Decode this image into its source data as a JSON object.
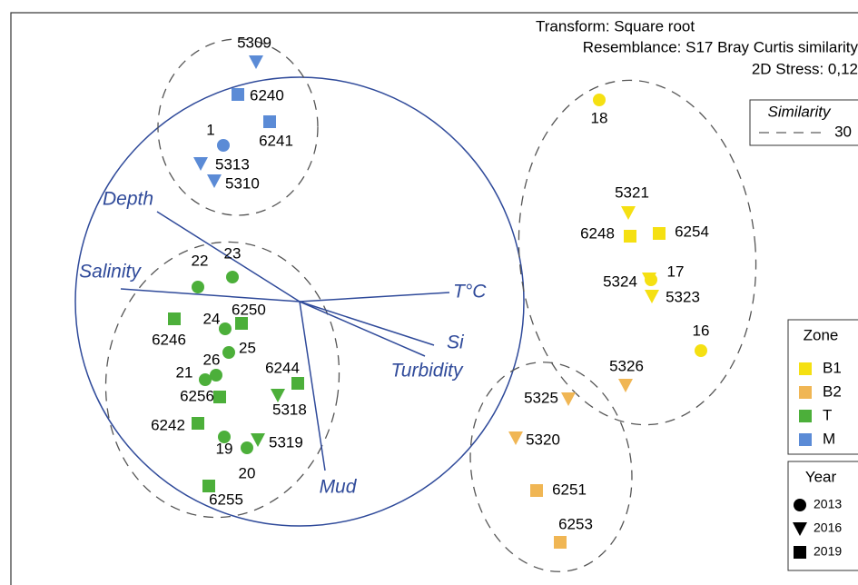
{
  "chart_data": {
    "type": "scatter",
    "title_lines": [
      "Transform: Square root",
      "Resemblance: S17 Bray Curtis similarity",
      "2D Stress: 0,12"
    ],
    "xlim": [
      0,
      945
    ],
    "ylim": [
      644,
      0
    ],
    "similarity_legend": {
      "title": "Similarity",
      "entries": [
        30
      ]
    },
    "zone_legend_title": "Zone",
    "year_legend": {
      "title": "Year",
      "entries": [
        2013,
        2016,
        2019
      ]
    },
    "series": [
      {
        "name": "B1",
        "color": "#f5e012",
        "labels": [
          "18",
          "5321",
          "6248",
          "6254",
          "5324",
          "17",
          "5323",
          "16"
        ],
        "x": [
          660,
          692,
          694,
          726,
          715,
          717,
          718,
          772
        ],
        "values": [
          110,
          234,
          260,
          257,
          307,
          308,
          326,
          386
        ],
        "years": [
          2013,
          2016,
          2019,
          2019,
          2016,
          2013,
          2016,
          2013
        ]
      },
      {
        "name": "B2",
        "color": "#f0b654",
        "labels": [
          "5326",
          "5325",
          "5320",
          "6251",
          "6253"
        ],
        "x": [
          689,
          626,
          568,
          591,
          617
        ],
        "values": [
          424,
          439,
          482,
          540,
          597
        ],
        "years": [
          2016,
          2016,
          2016,
          2019,
          2019
        ]
      },
      {
        "name": "T",
        "color": "#4caf3a",
        "labels": [
          "23",
          "22",
          "6250",
          "6246",
          "24",
          "25",
          "26",
          "21",
          "6256",
          "6244",
          "5318",
          "6242",
          "19",
          "5319",
          "20",
          "6255"
        ],
        "x": [
          256,
          218,
          266,
          192,
          248,
          252,
          238,
          226,
          242,
          328,
          306,
          218,
          247,
          284,
          272,
          230
        ],
        "values": [
          305,
          316,
          356,
          351,
          362,
          388,
          413,
          418,
          437,
          422,
          435,
          466,
          481,
          484,
          493,
          535
        ],
        "years": [
          2013,
          2013,
          2019,
          2019,
          2013,
          2013,
          2013,
          2013,
          2019,
          2019,
          2016,
          2019,
          2013,
          2016,
          2013,
          2019
        ]
      },
      {
        "name": "M",
        "color": "#5b8bd6",
        "labels": [
          "5309",
          "6240",
          "6241",
          "1",
          "5313",
          "5310"
        ],
        "x": [
          282,
          262,
          297,
          246,
          221,
          236
        ],
        "values": [
          68,
          104,
          134,
          160,
          180,
          199
        ],
        "years": [
          2016,
          2019,
          2019,
          2013,
          2016,
          2016
        ]
      }
    ],
    "vector_origin": [
      330,
      332
    ],
    "vectors": [
      {
        "name": "Depth",
        "x": 173,
        "y": 233
      },
      {
        "name": "Salinity",
        "x": 133,
        "y": 318
      },
      {
        "name": "T°C",
        "x": 495,
        "y": 322
      },
      {
        "name": "Si",
        "x": 478,
        "y": 380
      },
      {
        "name": "Turbidity",
        "x": 468,
        "y": 392
      },
      {
        "name": "Mud",
        "x": 358,
        "y": 518
      }
    ]
  }
}
